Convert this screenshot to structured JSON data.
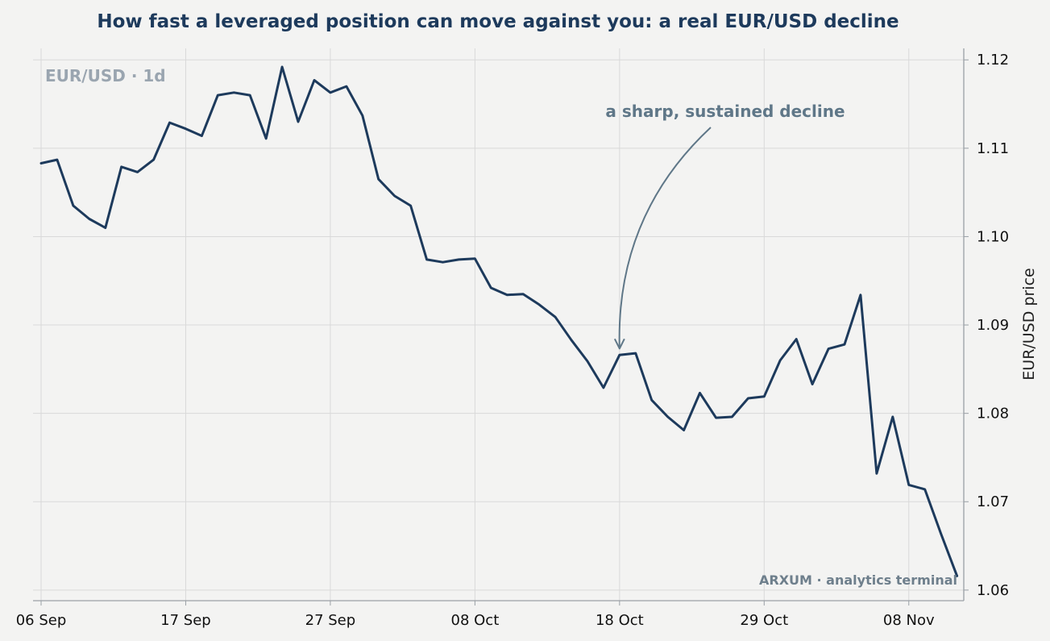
{
  "chart_data": {
    "type": "line",
    "title": "How fast a leveraged position can move against you: a real EUR/USD decline",
    "watermark": "EUR/USD · 1d",
    "ylabel": "EUR/USD price",
    "xlabel": "",
    "x_tick_labels": [
      "06 Sep",
      "17 Sep",
      "27 Sep",
      "08 Oct",
      "18 Oct",
      "29 Oct",
      "08 Nov"
    ],
    "y_ticks": [
      1.06,
      1.07,
      1.08,
      1.09,
      1.1,
      1.11,
      1.12
    ],
    "y_tick_labels": [
      "1.06",
      "1.07",
      "1.08",
      "1.09",
      "1.10",
      "1.11",
      "1.12"
    ],
    "ylim": [
      1.0588,
      1.1213
    ],
    "grid": true,
    "annotation": {
      "text": "a sharp, sustained decline",
      "target_index": 36
    },
    "footer": "ARXUM · analytics terminal",
    "colors": {
      "line": "#1d3a5c",
      "grid": "#d9d9d9",
      "annotation": "#5f7788",
      "axis": "#9aa0a6"
    },
    "series": [
      {
        "values": [
          1.1083,
          1.1087,
          1.1035,
          1.102,
          1.101,
          1.1079,
          1.1073,
          1.1087,
          1.1129,
          1.1122,
          1.1114,
          1.116,
          1.1163,
          1.116,
          1.1111,
          1.1192,
          1.113,
          1.1177,
          1.1163,
          1.117,
          1.1137,
          1.1065,
          1.1046,
          1.1035,
          1.0974,
          1.0971,
          1.0974,
          1.0975,
          1.0942,
          1.0934,
          1.0935,
          1.0923,
          1.0909,
          1.0883,
          1.0859,
          1.0829,
          1.0866,
          1.0868,
          1.0815,
          1.0796,
          1.0781,
          1.0823,
          1.0795,
          1.0796,
          1.0817,
          1.0819,
          1.086,
          1.0884,
          1.0833,
          1.0873,
          1.0878,
          1.0934,
          1.0732,
          1.0796,
          1.0719,
          1.0714,
          1.0664,
          1.0616
        ]
      }
    ]
  }
}
